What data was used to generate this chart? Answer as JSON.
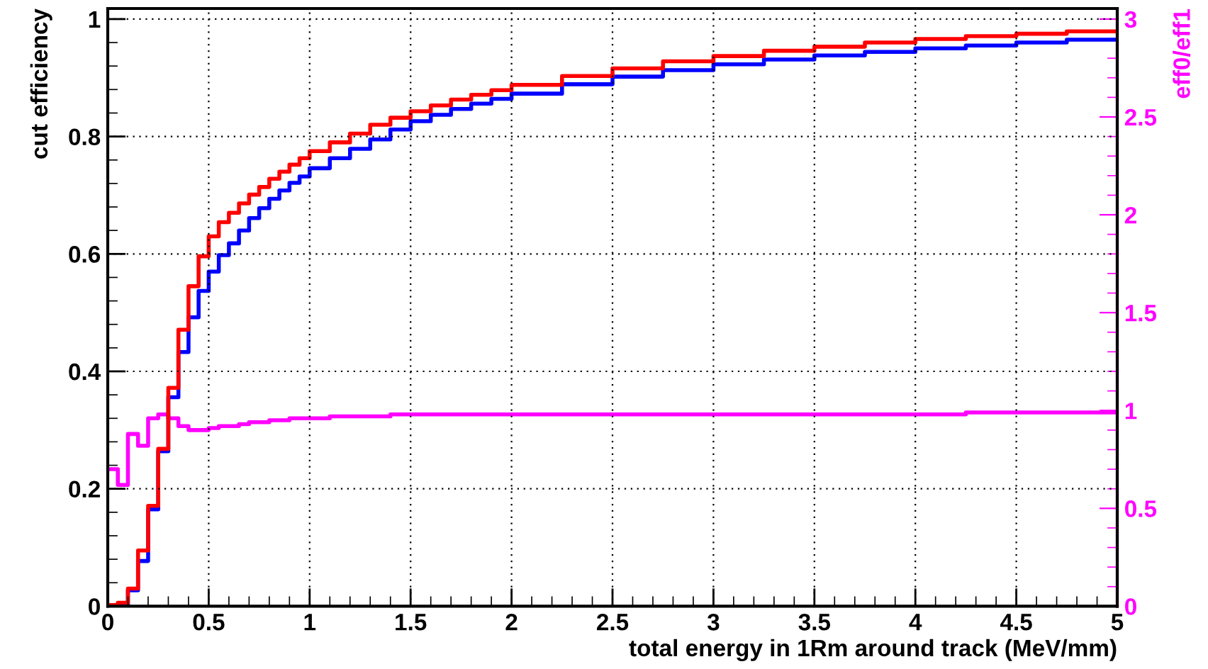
{
  "chart_data": {
    "type": "histogram",
    "xlabel": "total energy in 1Rm around track (MeV/mm)",
    "ylabel": "cut efficiency",
    "y2label": "eff0/eff1",
    "bins": [
      0,
      0.05,
      0.1,
      0.15,
      0.2,
      0.25,
      0.3,
      0.35,
      0.4,
      0.45,
      0.5,
      0.55,
      0.6,
      0.65,
      0.7,
      0.75,
      0.8,
      0.85,
      0.9,
      0.95,
      1.0,
      1.1,
      1.2,
      1.3,
      1.4,
      1.5,
      1.6,
      1.7,
      1.8,
      1.9,
      2.0,
      2.25,
      2.5,
      2.75,
      3.0,
      3.25,
      3.5,
      3.75,
      4.0,
      4.25,
      4.5,
      4.75,
      5.0
    ],
    "series": [
      {
        "color": "#0000ff",
        "values": [
          0,
          0.002,
          0.027,
          0.077,
          0.165,
          0.264,
          0.356,
          0.433,
          0.492,
          0.537,
          0.57,
          0.598,
          0.618,
          0.64,
          0.661,
          0.678,
          0.694,
          0.708,
          0.721,
          0.732,
          0.746,
          0.763,
          0.779,
          0.795,
          0.812,
          0.826,
          0.837,
          0.847,
          0.856,
          0.864,
          0.873,
          0.889,
          0.902,
          0.913,
          0.923,
          0.931,
          0.938,
          0.944,
          0.95,
          0.955,
          0.96,
          0.965
        ]
      },
      {
        "color": "#ff0000",
        "values": [
          0.002,
          0.006,
          0.03,
          0.095,
          0.171,
          0.268,
          0.372,
          0.471,
          0.545,
          0.596,
          0.63,
          0.654,
          0.67,
          0.686,
          0.701,
          0.714,
          0.728,
          0.74,
          0.752,
          0.763,
          0.775,
          0.79,
          0.805,
          0.82,
          0.832,
          0.843,
          0.853,
          0.863,
          0.871,
          0.879,
          0.888,
          0.903,
          0.916,
          0.928,
          0.937,
          0.946,
          0.953,
          0.96,
          0.966,
          0.971,
          0.975,
          0.979
        ]
      },
      {
        "color": "#ff00ff",
        "axis": "y2",
        "values": [
          0.7,
          0.62,
          0.88,
          0.82,
          0.96,
          0.98,
          0.96,
          0.92,
          0.9,
          0.9,
          0.91,
          0.92,
          0.92,
          0.93,
          0.94,
          0.94,
          0.95,
          0.95,
          0.96,
          0.96,
          0.96,
          0.97,
          0.97,
          0.97,
          0.98,
          0.98,
          0.98,
          0.98,
          0.98,
          0.98,
          0.98,
          0.98,
          0.98,
          0.98,
          0.98,
          0.98,
          0.98,
          0.98,
          0.98,
          0.99,
          0.99,
          0.99
        ]
      }
    ],
    "xlim": [
      0,
      5
    ],
    "xticks": [
      0,
      0.5,
      1,
      1.5,
      2,
      2.5,
      3,
      3.5,
      4,
      4.5,
      5
    ],
    "ylim": [
      0,
      1.018
    ],
    "yticks": [
      0,
      0.2,
      0.4,
      0.6,
      0.8,
      1
    ],
    "y2lim": [
      0,
      3.054
    ],
    "y2ticks": [
      0,
      0.5,
      1,
      1.5,
      2,
      2.5,
      3
    ],
    "grid": true,
    "legend": false
  }
}
